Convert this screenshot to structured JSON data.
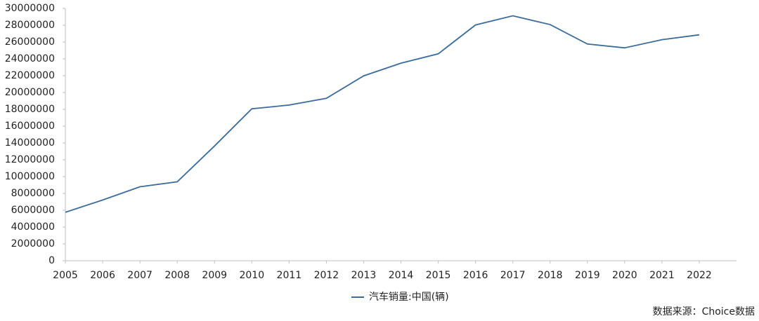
{
  "chart_data": {
    "type": "line",
    "categories": [
      "2005",
      "2006",
      "2007",
      "2008",
      "2009",
      "2010",
      "2011",
      "2012",
      "2013",
      "2014",
      "2015",
      "2016",
      "2017",
      "2018",
      "2019",
      "2020",
      "2021",
      "2022"
    ],
    "series": [
      {
        "name": "汽车销量:中国(辆)",
        "color": "#3a6b9a",
        "values": [
          5760000,
          7220000,
          8790000,
          9380000,
          13640000,
          18060000,
          18510000,
          19310000,
          21980000,
          23490000,
          24600000,
          28030000,
          29120000,
          28080000,
          25770000,
          25310000,
          26280000,
          26860000
        ]
      }
    ],
    "ylim": [
      0,
      30000000
    ],
    "yticks": [
      0,
      2000000,
      4000000,
      6000000,
      8000000,
      10000000,
      12000000,
      14000000,
      16000000,
      18000000,
      20000000,
      22000000,
      24000000,
      26000000,
      28000000,
      30000000
    ],
    "grid": false,
    "legend": "bottom",
    "source": "数据来源：Choice数据"
  }
}
